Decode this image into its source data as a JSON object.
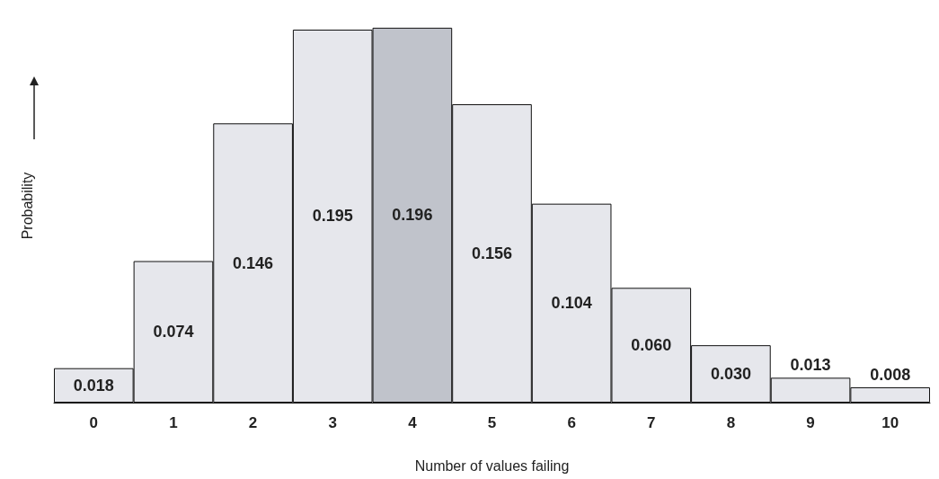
{
  "chart_data": {
    "type": "bar",
    "xlabel": "Number of values failing",
    "ylabel": "Probability",
    "categories": [
      "0",
      "1",
      "2",
      "3",
      "4",
      "5",
      "6",
      "7",
      "8",
      "9",
      "10"
    ],
    "values": [
      0.018,
      0.074,
      0.146,
      0.195,
      0.196,
      0.156,
      0.104,
      0.06,
      0.03,
      0.013,
      0.008
    ],
    "colors": [
      "#e6e7ec",
      "#e6e7ec",
      "#e6e7ec",
      "#e6e7ec",
      "#c0c3cb",
      "#e6e7ec",
      "#e6e7ec",
      "#e6e7ec",
      "#e6e7ec",
      "#e6e7ec",
      "#e6e7ec"
    ],
    "value_labels": [
      "0.018",
      "0.074",
      "0.146",
      "0.195",
      "0.196",
      "0.156",
      "0.104",
      "0.060",
      "0.030",
      "0.013",
      "0.008"
    ],
    "grid": false
  }
}
